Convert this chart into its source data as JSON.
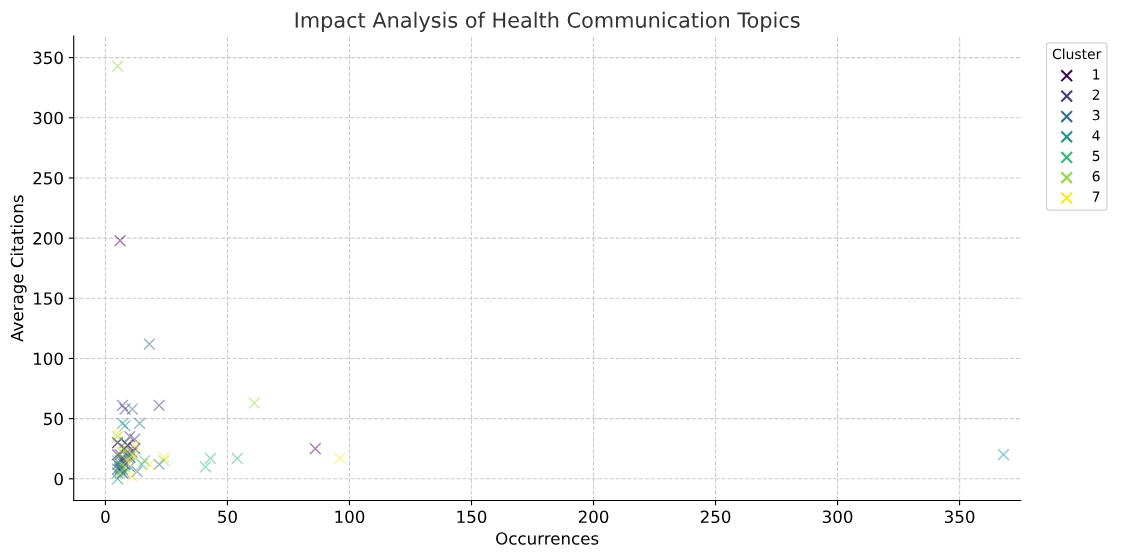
{
  "chart_data": {
    "type": "scatter",
    "title": "Impact Analysis of Health Communication Topics",
    "xlabel": "Occurrences",
    "ylabel": "Average Citations",
    "legend_title": "Cluster",
    "xlim": [
      -13,
      375
    ],
    "ylim": [
      -18,
      368
    ],
    "xticks": [
      0,
      50,
      100,
      150,
      200,
      250,
      300,
      350
    ],
    "yticks": [
      0,
      50,
      100,
      150,
      200,
      250,
      300,
      350
    ],
    "grid": true,
    "legend": "top right",
    "marker": "cross",
    "series": [
      {
        "name": "1",
        "color": "#440154",
        "x": [
          6,
          86,
          5,
          7,
          9,
          6,
          8,
          10,
          12,
          5,
          7,
          6,
          9
        ],
        "values": [
          198,
          25,
          20,
          15,
          22,
          8,
          12,
          18,
          25,
          30,
          5,
          10,
          28
        ]
      },
      {
        "name": "2",
        "color": "#443983",
        "x": [
          7,
          8,
          22,
          12,
          5,
          6,
          9,
          11,
          7,
          5,
          10,
          8
        ],
        "values": [
          61,
          58,
          61,
          33,
          30,
          20,
          28,
          22,
          17,
          12,
          35,
          25
        ]
      },
      {
        "name": "3",
        "color": "#31688e",
        "x": [
          18,
          11,
          14,
          22,
          13,
          8,
          6,
          9,
          10,
          5
        ],
        "values": [
          112,
          58,
          46,
          12,
          6,
          30,
          15,
          20,
          10,
          8
        ]
      },
      {
        "name": "4",
        "color": "#21918c",
        "x": [
          368,
          7,
          8,
          5,
          6,
          9,
          7,
          5
        ],
        "values": [
          20,
          46,
          44,
          0,
          12,
          18,
          8,
          5
        ]
      },
      {
        "name": "5",
        "color": "#35b779",
        "x": [
          41,
          43,
          54,
          16,
          15,
          6,
          8,
          5,
          10
        ],
        "values": [
          10,
          17,
          17,
          15,
          12,
          10,
          5,
          15,
          20
        ]
      },
      {
        "name": "6",
        "color": "#90d743",
        "x": [
          5,
          61,
          24,
          5,
          8,
          7,
          12,
          6
        ],
        "values": [
          343,
          63,
          15,
          35,
          10,
          22,
          18,
          5
        ]
      },
      {
        "name": "7",
        "color": "#fde725",
        "x": [
          96,
          24,
          18,
          5,
          12,
          7,
          9,
          11,
          11
        ],
        "values": [
          17,
          18,
          12,
          38,
          28,
          25,
          15,
          2,
          20
        ]
      }
    ]
  }
}
